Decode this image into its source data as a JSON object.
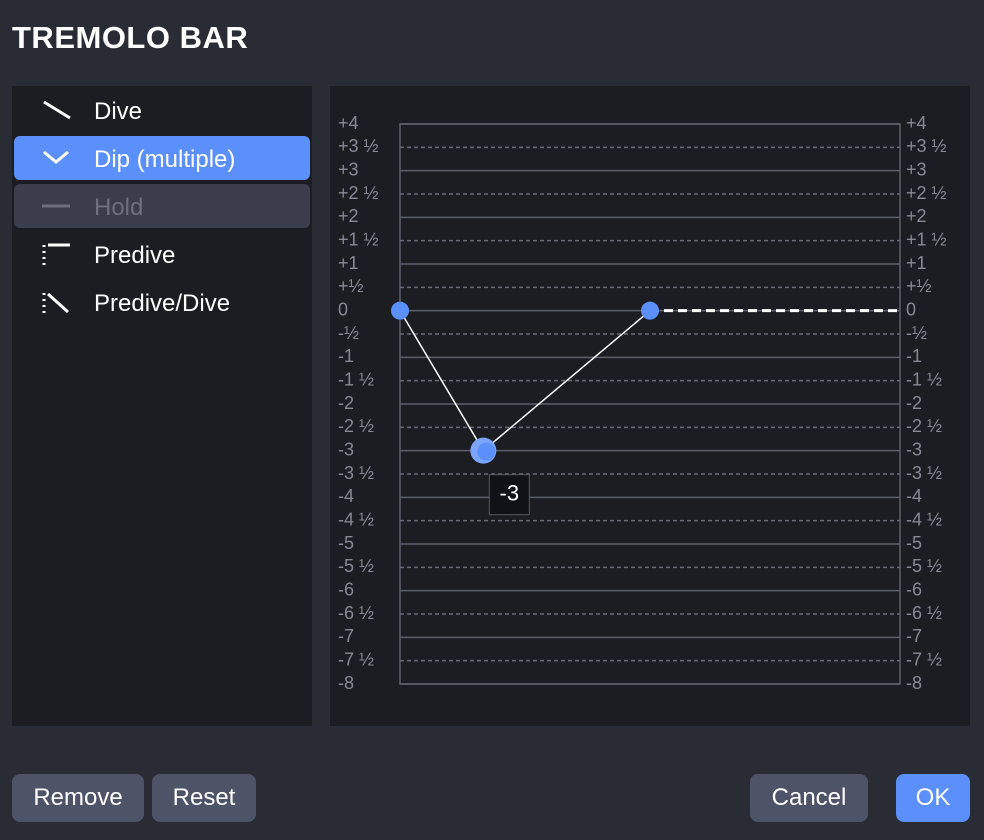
{
  "title": "TREMOLO BAR",
  "presets": [
    {
      "label": "Dive",
      "state": "normal"
    },
    {
      "label": "Dip (multiple)",
      "state": "selected"
    },
    {
      "label": "Hold",
      "state": "disabled"
    },
    {
      "label": "Predive",
      "state": "normal"
    },
    {
      "label": "Predive/Dive",
      "state": "normal"
    }
  ],
  "graph": {
    "xlim": [
      0,
      12
    ],
    "ylim": [
      -8,
      4
    ],
    "yticks": [
      {
        "value": 4,
        "label": "+4"
      },
      {
        "value": 3.5,
        "label": "+3 ½"
      },
      {
        "value": 3,
        "label": "+3"
      },
      {
        "value": 2.5,
        "label": "+2 ½"
      },
      {
        "value": 2,
        "label": "+2"
      },
      {
        "value": 1.5,
        "label": "+1 ½"
      },
      {
        "value": 1,
        "label": "+1"
      },
      {
        "value": 0.5,
        "label": "+½"
      },
      0,
      {
        "value": -0.5,
        "label": "-½"
      },
      -1,
      {
        "value": -1.5,
        "label": "-1 ½"
      },
      -2,
      {
        "value": -2.5,
        "label": "-2 ½"
      },
      -3,
      {
        "value": -3.5,
        "label": "-3 ½"
      },
      -4,
      {
        "value": -4.5,
        "label": "-4 ½"
      },
      -5,
      {
        "value": -5.5,
        "label": "-5 ½"
      },
      -6,
      {
        "value": -6.5,
        "label": "-6 ½"
      },
      -7,
      {
        "value": -7.5,
        "label": "-7 ½"
      },
      -8
    ],
    "points": [
      {
        "x": 0,
        "y": 0
      },
      {
        "x": 2,
        "y": -3
      },
      {
        "x": 6,
        "y": 0
      }
    ],
    "selected_point": 1,
    "point_color": "#5b8ff9"
  },
  "buttons": {
    "remove": "Remove",
    "reset": "Reset",
    "cancel": "Cancel",
    "ok": "OK"
  }
}
